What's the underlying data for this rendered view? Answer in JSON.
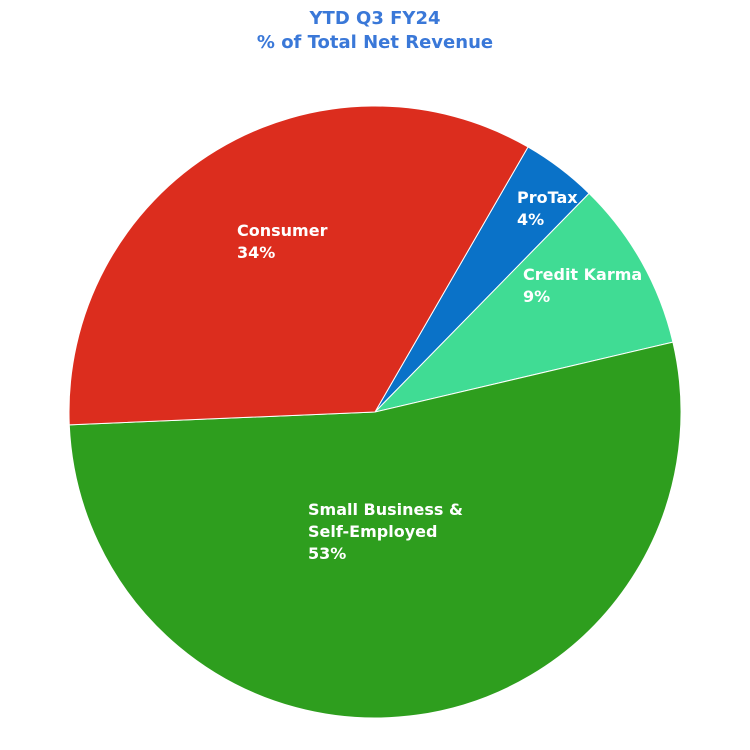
{
  "chart_data": {
    "type": "pie",
    "title": "YTD Q3 FY24",
    "subtitle": "% of Total Net Revenue",
    "categories": [
      "ProTax",
      "Credit Karma",
      "Small Business & Self-Employed",
      "Consumer"
    ],
    "values": [
      4,
      9,
      53,
      34
    ],
    "value_labels": [
      "4%",
      "9%",
      "53%",
      "34%"
    ],
    "colors": [
      "#0a72c8",
      "#40dc94",
      "#2e9e1e",
      "#dc2d1e"
    ]
  }
}
